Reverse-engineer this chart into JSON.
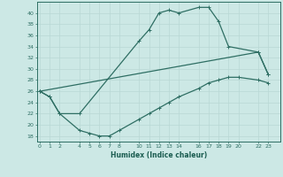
{
  "xlabel": "Humidex (Indice chaleur)",
  "line_color": "#2e6e63",
  "bg_color": "#cce8e5",
  "grid_color_major": "#b8d8d4",
  "grid_color_minor": "#d4ecea",
  "ylim": [
    17,
    42
  ],
  "yticks": [
    18,
    20,
    22,
    24,
    26,
    28,
    30,
    32,
    34,
    36,
    38,
    40
  ],
  "xticks": [
    0,
    1,
    2,
    4,
    5,
    6,
    7,
    8,
    10,
    11,
    12,
    13,
    14,
    16,
    17,
    18,
    19,
    20,
    22,
    23
  ],
  "xlim": [
    -0.3,
    24.2
  ],
  "curve1_x": [
    0,
    1,
    2,
    4,
    10,
    11,
    12,
    13,
    14,
    16,
    17,
    18,
    19,
    22,
    23
  ],
  "curve1_y": [
    26,
    25,
    22,
    22,
    35,
    37,
    40,
    40.5,
    40,
    41,
    41,
    38.5,
    34,
    33,
    29
  ],
  "curve2_x": [
    0,
    22,
    23
  ],
  "curve2_y": [
    26,
    33,
    29
  ],
  "curve3_x": [
    0,
    1,
    2,
    4,
    5,
    6,
    7,
    8,
    10,
    11,
    12,
    13,
    14,
    16,
    17,
    18,
    19,
    20,
    22,
    23
  ],
  "curve3_y": [
    26,
    25,
    22,
    19,
    18.5,
    18,
    18,
    19,
    21,
    22,
    23,
    24,
    25,
    26.5,
    27.5,
    28,
    28.5,
    28.5,
    28,
    27.5
  ]
}
